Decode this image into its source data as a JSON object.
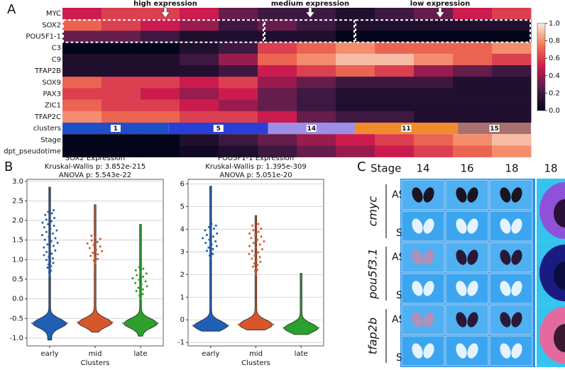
{
  "panels": {
    "a": "A",
    "b": "B",
    "c": "C"
  },
  "heatmap": {
    "rows": [
      {
        "name": "MYC",
        "values": [
          0.5,
          0.6,
          0.6,
          0.5,
          0.3,
          0.2,
          0.2,
          0.1,
          0.2,
          0.3,
          0.5,
          0.6
        ]
      },
      {
        "name": "SOX2",
        "values": [
          0.7,
          0.6,
          0.5,
          0.4,
          0.2,
          0.3,
          0.2,
          0.1,
          0.1,
          0.1,
          0.1,
          0.1
        ]
      },
      {
        "name": "POU5F1-1",
        "values": [
          0.3,
          0.3,
          0.2,
          0.1,
          0.1,
          0.1,
          0.1,
          0.0,
          0.0,
          0.0,
          0.0,
          0.0
        ]
      },
      {
        "name": "C3",
        "values": [
          0.0,
          0.0,
          0.0,
          0.1,
          0.2,
          0.6,
          0.7,
          0.8,
          0.7,
          0.7,
          0.7,
          0.8
        ]
      },
      {
        "name": "C9",
        "values": [
          0.1,
          0.1,
          0.1,
          0.2,
          0.4,
          0.7,
          0.8,
          0.9,
          0.9,
          0.8,
          0.7,
          0.6
        ]
      },
      {
        "name": "TFAP2B",
        "values": [
          0.1,
          0.1,
          0.1,
          0.1,
          0.2,
          0.5,
          0.6,
          0.7,
          0.6,
          0.4,
          0.3,
          0.2
        ]
      },
      {
        "name": "SOX9",
        "values": [
          0.7,
          0.6,
          0.6,
          0.5,
          0.6,
          0.4,
          0.3,
          0.2,
          0.2,
          0.2,
          0.1,
          0.1
        ]
      },
      {
        "name": "PAX3",
        "values": [
          0.6,
          0.6,
          0.5,
          0.4,
          0.5,
          0.3,
          0.2,
          0.1,
          0.1,
          0.1,
          0.1,
          0.1
        ]
      },
      {
        "name": "ZIC1",
        "values": [
          0.7,
          0.6,
          0.6,
          0.5,
          0.4,
          0.3,
          0.2,
          0.1,
          0.1,
          0.1,
          0.1,
          0.1
        ]
      },
      {
        "name": "TFAP2C",
        "values": [
          0.8,
          0.7,
          0.7,
          0.6,
          0.6,
          0.5,
          0.3,
          0.2,
          0.2,
          0.1,
          0.1,
          0.1
        ]
      }
    ],
    "clusters": {
      "name": "clusters",
      "labels": [
        "1",
        "5",
        "14",
        "11",
        "15"
      ],
      "edges": [
        0,
        0.227,
        0.439,
        0.624,
        0.844,
        1
      ],
      "colors": [
        "#1f4fc8",
        "#2a3fd6",
        "#9d8ee8",
        "#f28a2e",
        "#a8706e"
      ]
    },
    "tracks": [
      {
        "name": "Stage",
        "values": [
          0.0,
          0.0,
          0.0,
          0.1,
          0.2,
          0.3,
          0.4,
          0.5,
          0.6,
          0.7,
          0.8,
          0.9
        ]
      },
      {
        "name": "dpt_pseudotime",
        "values": [
          0.0,
          0.0,
          0.0,
          0.05,
          0.1,
          0.2,
          0.3,
          0.4,
          0.5,
          0.6,
          0.7,
          0.8
        ]
      }
    ],
    "colorbar_lim": [
      0,
      1
    ],
    "colorbar_ticks": [
      {
        "value": 0,
        "label": "0.0"
      },
      {
        "value": 0.2,
        "label": "0.2"
      },
      {
        "value": 0.4,
        "label": "0.4"
      },
      {
        "value": 0.6,
        "label": "0.6"
      },
      {
        "value": 0.8,
        "label": "0.8"
      },
      {
        "value": 1,
        "label": "1.0"
      }
    ],
    "annotations": [
      "high expression",
      "medium expression",
      "low expression"
    ]
  },
  "violin_charts": [
    {
      "type": "violin",
      "title": "SOX2 Expression",
      "subtitle": [
        "Kruskal-Wallis p: 3.852e-215",
        "ANOVA p: 5.543e-22"
      ],
      "xlabel": "Clusters",
      "categories": [
        "early",
        "mid",
        "late"
      ],
      "ylim": [
        -1.2,
        3.05
      ],
      "grid": true,
      "yticks": [
        {
          "value": -1,
          "label": "-1.0"
        },
        {
          "value": -0.5,
          "label": "-0.5"
        },
        {
          "value": 0,
          "label": "0.0"
        },
        {
          "value": 0.5,
          "label": "0.5"
        },
        {
          "value": 1,
          "label": "1.0"
        },
        {
          "value": 1.5,
          "label": "1.5"
        },
        {
          "value": 2,
          "label": "2.0"
        },
        {
          "value": 2.5,
          "label": "2.5"
        },
        {
          "value": 3,
          "label": "3.0"
        }
      ],
      "violins": [
        {
          "min": -1.05,
          "max": 2.85,
          "median": -0.62,
          "color": "#1f5fb4",
          "upper_cluster": [
            0.6,
            2.3
          ]
        },
        {
          "min": -0.85,
          "max": 2.4,
          "median": -0.6,
          "color": "#d6572b",
          "upper_cluster": [
            0.9,
            1.65
          ]
        },
        {
          "min": -0.95,
          "max": 1.9,
          "median": -0.62,
          "color": "#2ca02c",
          "upper_cluster": [
            0.0,
            0.85
          ]
        }
      ]
    },
    {
      "type": "violin",
      "title": "POU5F1-1 Expression",
      "subtitle": [
        "Kruskal-Wallis p: 1.395e-309",
        "ANOVA p: 5.051e-20"
      ],
      "xlabel": "Clusters",
      "categories": [
        "early",
        "mid",
        "late"
      ],
      "ylim": [
        -1.15,
        6.2
      ],
      "grid": true,
      "yticks": [
        -1,
        0,
        1,
        2,
        3,
        4,
        5,
        6
      ],
      "violins": [
        {
          "min": -0.5,
          "max": 5.9,
          "median": -0.25,
          "color": "#1f5fb4",
          "upper_cluster": [
            2.7,
            4.3
          ]
        },
        {
          "min": -0.45,
          "max": 4.6,
          "median": -0.2,
          "color": "#d6572b",
          "upper_cluster": [
            2.0,
            4.3
          ]
        },
        {
          "min": -0.65,
          "max": 2.05,
          "median": -0.35,
          "color": "#2ca02c"
        }
      ]
    }
  ],
  "in_situ": {
    "stage_label": "Stage",
    "stages": [
      "14",
      "16",
      "18",
      "18"
    ],
    "genes": [
      {
        "name": "cmyc",
        "views": [
          "AS",
          "S"
        ]
      },
      {
        "name": "pou5f3.1",
        "views": [
          "AS",
          "S"
        ]
      },
      {
        "name": "tfap2b",
        "views": [
          "AS",
          "S"
        ]
      }
    ]
  }
}
